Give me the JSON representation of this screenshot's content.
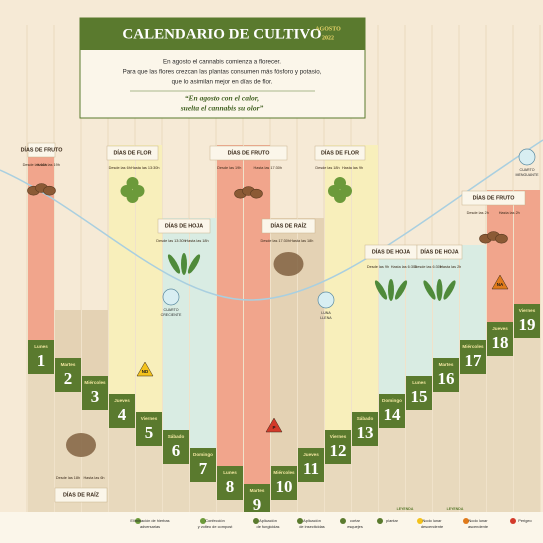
{
  "header": {
    "title": "CALENDARIO DE CULTIVO",
    "month": "AGOSTO",
    "year": "2022",
    "intro": [
      "En agosto el cannabis comienza a florecer.",
      "Para que las flores crezcan las plantas consumen más fósforo y potasio,",
      "que lo asimilan mejor en días de flor."
    ],
    "quote": [
      "“En agosto con el calor,",
      "suelta el cannabis su olor”"
    ]
  },
  "days": [
    {
      "weekday": "Lunes",
      "number": 1
    },
    {
      "weekday": "Martes",
      "number": 2
    },
    {
      "weekday": "Miércoles",
      "number": 3
    },
    {
      "weekday": "Jueves",
      "number": 4
    },
    {
      "weekday": "Viernes",
      "number": 5
    },
    {
      "weekday": "Sábado",
      "number": 6
    },
    {
      "weekday": "Domingo",
      "number": 7
    },
    {
      "weekday": "Lunes",
      "number": 8
    },
    {
      "weekday": "Martes",
      "number": 9
    },
    {
      "weekday": "Miércoles",
      "number": 10
    },
    {
      "weekday": "Jueves",
      "number": 11
    },
    {
      "weekday": "Viernes",
      "number": 12
    },
    {
      "weekday": "Sábado",
      "number": 13
    },
    {
      "weekday": "Domingo",
      "number": 14
    },
    {
      "weekday": "Lunes",
      "number": 15
    },
    {
      "weekday": "Martes",
      "number": 16
    },
    {
      "weekday": "Miércoles",
      "number": 17
    },
    {
      "weekday": "Jueves",
      "number": 18
    },
    {
      "weekday": "Viernes",
      "number": 19
    }
  ],
  "groups": [
    {
      "label": "DÍAS DE FRUTO",
      "from": "Desde las 10h",
      "to": "Hasta las 19h"
    },
    {
      "label": "DÍAS DE RAÍZ",
      "from": "Desde las 18h",
      "to": "Hasta las 6h"
    },
    {
      "label": "DÍAS DE FLOR",
      "from": "Desde las 6h",
      "to": "Hasta las 13:30h"
    },
    {
      "label": "DÍAS DE HOJA",
      "from": "Desde las 13:30h",
      "to": "Hasta las 18h"
    },
    {
      "label": "DÍAS DE FRUTO",
      "from": "Desde las 19h",
      "to": "Hasta las 17:30h"
    },
    {
      "label": "DÍAS DE RAÍZ",
      "from": "Desde las 17:30h",
      "to": "Hasta las 18h"
    },
    {
      "label": "DÍAS DE FLOR",
      "from": "Desde las 18h",
      "to": "Hasta las 9h"
    },
    {
      "label": "DÍAS DE HOJA",
      "from": "Desde las 9h",
      "to": "Hasta las 6:30h"
    },
    {
      "label": "DÍAS DE HOJA",
      "from": "Desde las 6:30h",
      "to": "Hasta las 2h"
    },
    {
      "label": "DÍAS DE FRUTO",
      "from": "Desde las 2h",
      "to": "Hasta las 2h"
    }
  ],
  "moons": [
    [
      "CUARTO",
      "CRECIENTE"
    ],
    [
      "LUNA",
      "LLENA"
    ],
    [
      "CUARTO",
      "MENGUANTE"
    ]
  ],
  "badges": [
    "ND",
    "P",
    "NA"
  ],
  "legend": {
    "title": "LEYENDA",
    "items": [
      [
        "Eliminación de hierbas",
        "adversarias"
      ],
      [
        "Confección",
        "y volteo de compost"
      ],
      [
        "Aplicación",
        "de fungicidas"
      ],
      [
        "Aplicación",
        "de insecticidas"
      ],
      [
        "cortar",
        "esquejes"
      ],
      [
        "plantar"
      ],
      [
        "Nodo lunar",
        "descendente"
      ],
      [
        "Nodo lunar",
        "ascendente"
      ],
      [
        "Perigeo"
      ]
    ]
  }
}
